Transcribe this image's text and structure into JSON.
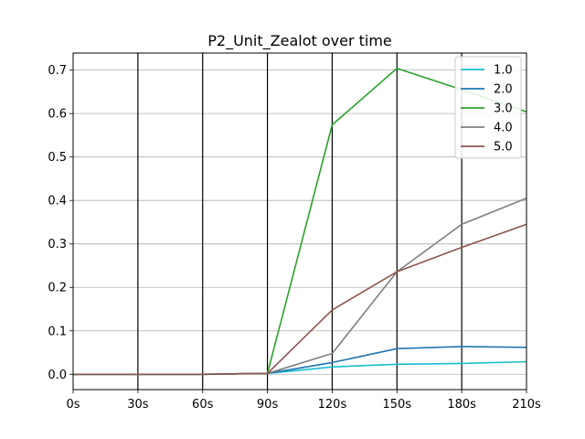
{
  "chart_data": {
    "type": "line",
    "title": "P2_Unit_Zealot over time",
    "xlabel": "",
    "ylabel": "",
    "x": [
      "0s",
      "30s",
      "60s",
      "90s",
      "120s",
      "150s",
      "180s",
      "210s"
    ],
    "ylim": [
      -0.0352,
      0.7392
    ],
    "yticks": [
      "0.0",
      "0.1",
      "0.2",
      "0.3",
      "0.4",
      "0.5",
      "0.6",
      "0.7"
    ],
    "grid": "horizontal",
    "legend_position": "top-right",
    "series": [
      {
        "name": "1.0",
        "color": "#17becf",
        "values": [
          0,
          0,
          0,
          0.002,
          0.017,
          0.023,
          0.025,
          0.029
        ]
      },
      {
        "name": "2.0",
        "color": "#1f77b4",
        "values": [
          0,
          0,
          0,
          0.002,
          0.027,
          0.059,
          0.064,
          0.062
        ]
      },
      {
        "name": "3.0",
        "color": "#2ca02c",
        "values": [
          0,
          0,
          0,
          0.002,
          0.574,
          0.704,
          0.655,
          0.604
        ]
      },
      {
        "name": "4.0",
        "color": "#7f7f7f",
        "values": [
          0,
          0,
          0,
          0.002,
          0.048,
          0.236,
          0.345,
          0.405
        ]
      },
      {
        "name": "5.0",
        "color": "#8c564b",
        "values": [
          0,
          0,
          0,
          0.002,
          0.148,
          0.236,
          0.292,
          0.345
        ]
      }
    ]
  }
}
